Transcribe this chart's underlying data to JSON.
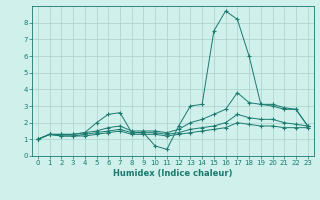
{
  "xlabel": "Humidex (Indice chaleur)",
  "x": [
    0,
    1,
    2,
    3,
    4,
    5,
    6,
    7,
    8,
    9,
    10,
    11,
    12,
    13,
    14,
    15,
    16,
    17,
    18,
    19,
    20,
    21,
    22,
    23
  ],
  "series": [
    [
      1.0,
      1.3,
      1.3,
      1.3,
      1.4,
      2.0,
      2.5,
      2.6,
      1.4,
      1.4,
      0.6,
      0.4,
      1.8,
      3.0,
      3.1,
      7.5,
      8.7,
      8.2,
      6.0,
      3.1,
      3.0,
      2.8,
      2.8,
      1.8
    ],
    [
      1.0,
      1.3,
      1.3,
      1.3,
      1.4,
      1.5,
      1.7,
      1.8,
      1.5,
      1.5,
      1.5,
      1.4,
      1.6,
      2.0,
      2.2,
      2.5,
      2.8,
      3.8,
      3.2,
      3.1,
      3.1,
      2.9,
      2.8,
      1.8
    ],
    [
      1.0,
      1.3,
      1.2,
      1.2,
      1.3,
      1.4,
      1.5,
      1.6,
      1.4,
      1.4,
      1.4,
      1.3,
      1.4,
      1.6,
      1.7,
      1.8,
      2.0,
      2.5,
      2.3,
      2.2,
      2.2,
      2.0,
      1.9,
      1.8
    ],
    [
      1.0,
      1.3,
      1.2,
      1.2,
      1.2,
      1.3,
      1.4,
      1.5,
      1.3,
      1.3,
      1.3,
      1.2,
      1.3,
      1.4,
      1.5,
      1.6,
      1.7,
      2.0,
      1.9,
      1.8,
      1.8,
      1.7,
      1.7,
      1.7
    ]
  ],
  "color": "#1a7a6e",
  "bg_color": "#cff0eb",
  "grid_color": "#aacfca",
  "ylim": [
    0,
    9
  ],
  "xlim": [
    -0.5,
    23.5
  ],
  "yticks": [
    0,
    1,
    2,
    3,
    4,
    5,
    6,
    7,
    8
  ],
  "xticks": [
    0,
    1,
    2,
    3,
    4,
    5,
    6,
    7,
    8,
    9,
    10,
    11,
    12,
    13,
    14,
    15,
    16,
    17,
    18,
    19,
    20,
    21,
    22,
    23
  ]
}
